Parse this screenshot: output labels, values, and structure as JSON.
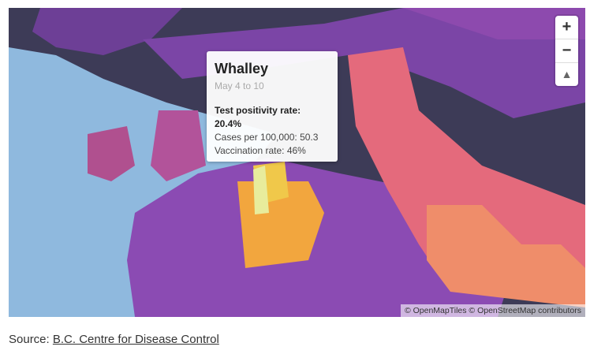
{
  "tooltip": {
    "title": "Whalley",
    "date": "May 4 to 10",
    "rows": [
      "Test positivity rate: 20.4%",
      "Cases per 100,000: 50.3",
      "Vaccination rate: 46%"
    ]
  },
  "controls": {
    "zoom_in": "+",
    "zoom_out": "−",
    "compass": "▲"
  },
  "attribution": "© OpenMapTiles © OpenStreetMap contributors",
  "source": {
    "label": "Source:",
    "link": "B.C. Centre for Disease Control"
  }
}
